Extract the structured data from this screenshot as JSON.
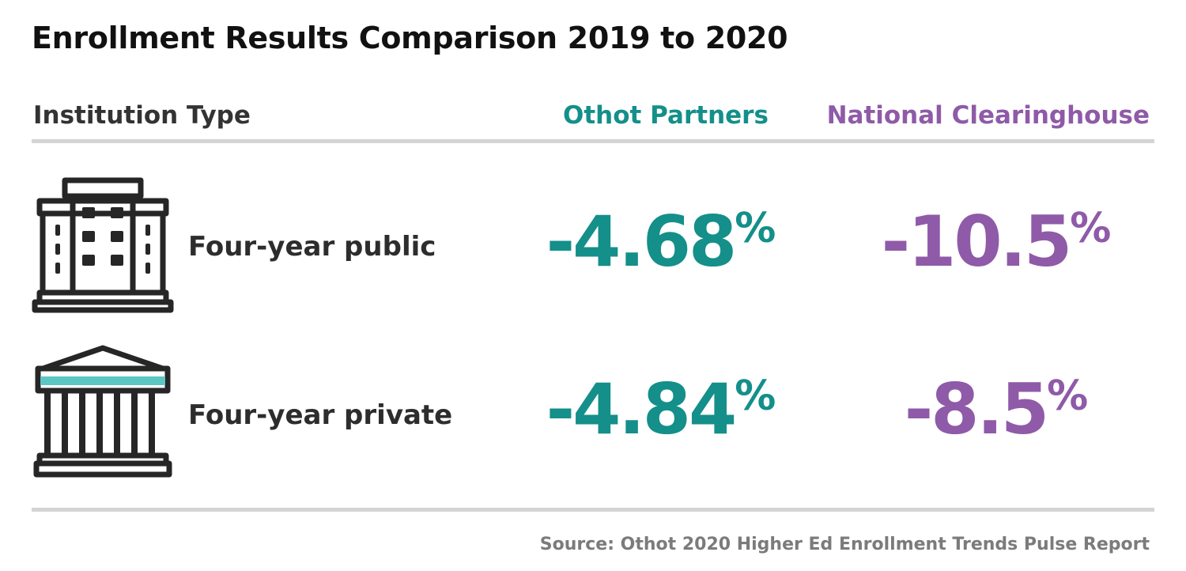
{
  "title": "Enrollment Results Comparison 2019 to 2020",
  "columns": {
    "type_label": "Institution Type",
    "othot_label": "Othot Partners",
    "national_label": "National Clearinghouse"
  },
  "colors": {
    "othot": "#148f8a",
    "national": "#8f5aa8",
    "pillar_accent": "#5cc6c2",
    "icon_stroke": "#262626"
  },
  "rows": [
    {
      "label": "Four-year public",
      "icon": "public-university-building-icon",
      "othot_value": "-4.68",
      "national_value": "-10.5",
      "unit": "%"
    },
    {
      "label": "Four-year private",
      "icon": "private-college-columns-icon",
      "othot_value": "-4.84",
      "national_value": "-8.5",
      "unit": "%"
    }
  ],
  "source": "Source: Othot 2020 Higher Ed Enrollment Trends Pulse Report",
  "chart_data": {
    "type": "table",
    "title": "Enrollment Results Comparison 2019 to 2020",
    "columns": [
      "Institution Type",
      "Othot Partners",
      "National Clearinghouse"
    ],
    "categories": [
      "Four-year public",
      "Four-year private"
    ],
    "series": [
      {
        "name": "Othot Partners",
        "values": [
          -4.68,
          -4.84
        ]
      },
      {
        "name": "National Clearinghouse",
        "values": [
          -10.5,
          -8.5
        ]
      }
    ],
    "unit": "%"
  }
}
